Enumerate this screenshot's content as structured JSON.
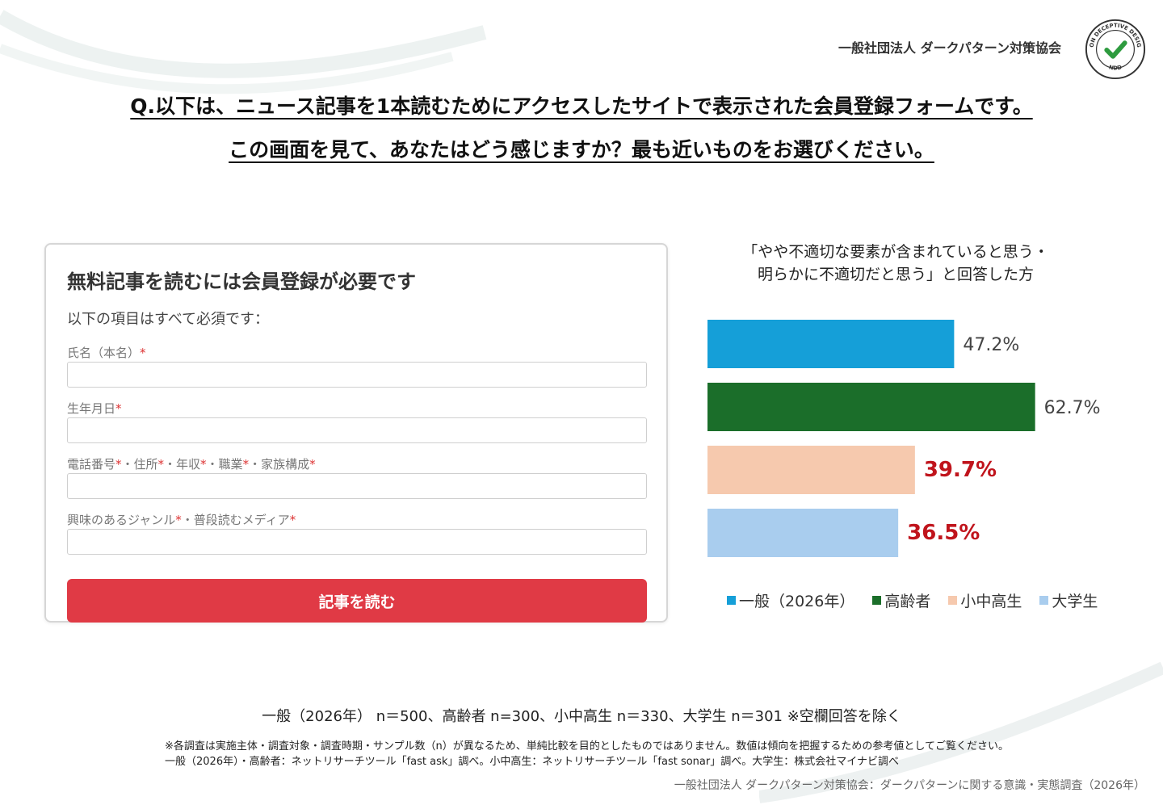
{
  "header": {
    "org_name": "一般社団法人 ダークパターン対策協会",
    "badge_text_top": "NON DECEPTIVE DESIGN",
    "badge_text_bottom": "NDD"
  },
  "question": {
    "line1": "Q.以下は、ニュース記事を1本読むためにアクセスしたサイトで表示された会員登録フォームです。",
    "line2": "この画面を見て、あなたはどう感じますか？最も近いものをお選びください。"
  },
  "form": {
    "title": "無料記事を読むには会員登録が必要です",
    "subtitle": "以下の項目はすべて必須です：",
    "fields": [
      {
        "label": "氏名（本名）"
      },
      {
        "label": "生年月日"
      },
      {
        "label_parts": [
          "電話番号",
          "・住所",
          "・年収",
          "・職業",
          "・家族構成"
        ]
      },
      {
        "label_parts": [
          "興味のあるジャンル",
          "・普段読むメディア"
        ]
      }
    ],
    "required_mark": "*",
    "submit_label": "記事を読む"
  },
  "chart_data": {
    "type": "bar",
    "orientation": "horizontal",
    "title_line1": "「やや不適切な要素が含まれていると思う・",
    "title_line2": "明らかに不適切だと思う」と回答した方",
    "categories": [
      "一般（2026年）",
      "高齢者",
      "小中高生",
      "大学生"
    ],
    "values": [
      47.2,
      62.7,
      39.7,
      36.5
    ],
    "value_labels": [
      "47.2%",
      "62.7%",
      "39.7%",
      "36.5%"
    ],
    "colors": [
      "#159fd8",
      "#1b6e2a",
      "#f6c9ae",
      "#a9cdee"
    ],
    "label_colors": [
      "#444444",
      "#444444",
      "#c0141c",
      "#c0141c"
    ],
    "label_bold": [
      false,
      false,
      true,
      true
    ],
    "legend_position": "bottom",
    "grid": false
  },
  "footer": {
    "sample_note": "一般（2026年） n＝500、高齢者 n=300、小中高生 n＝330、大学生 n＝301 ※空欄回答を除く",
    "fine_print_1": "※各調査は実施主体・調査対象・調査時期・サンプル数（n）が異なるため、単純比較を目的としたものではありません。数値は傾向を把握するための参考値としてご覧ください。",
    "fine_print_2": "一般（2026年）・高齢者：ネットリサーチツール「fast ask」調べ。小中高生：ネットリサーチツール「fast sonar」調べ。大学生：株式会社マイナビ調べ",
    "source": "一般社団法人 ダークパターン対策協会：ダークパターンに関する意識・実態調査（2026年）"
  }
}
